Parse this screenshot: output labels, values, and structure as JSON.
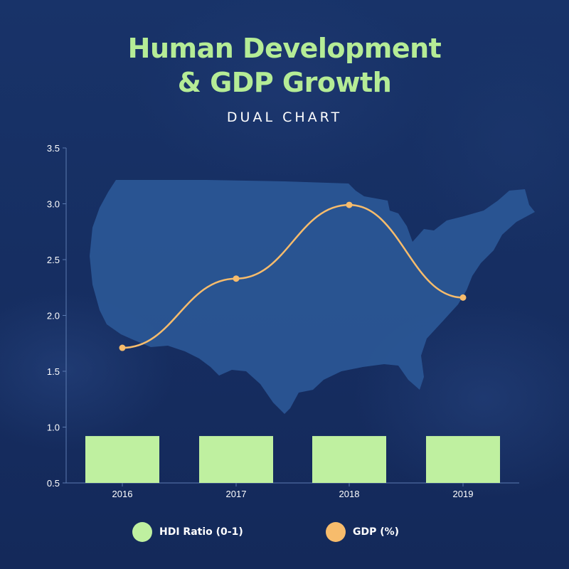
{
  "header": {
    "title_line1": "Human Development",
    "title_line2": "& GDP Growth",
    "subtitle": "DUAL CHART"
  },
  "colors": {
    "bar": "#bff0a0",
    "line": "#f7bc6c",
    "background": "#173064",
    "map": "#2d5a9a"
  },
  "legend": {
    "items": [
      {
        "label": "HDI Ratio (0-1)",
        "color": "#bff0a0"
      },
      {
        "label": "GDP (%)",
        "color": "#f7bc6c"
      }
    ]
  },
  "chart_data": {
    "type": "bar",
    "categories": [
      "2016",
      "2017",
      "2018",
      "2019"
    ],
    "series": [
      {
        "name": "HDI Ratio (0-1)",
        "type": "bar",
        "values": [
          0.92,
          0.92,
          0.92,
          0.92
        ]
      },
      {
        "name": "GDP (%)",
        "type": "line",
        "values": [
          1.71,
          2.33,
          2.99,
          2.16
        ]
      }
    ],
    "y_ticks": [
      "0.5",
      "1.0",
      "1.5",
      "2.0",
      "2.5",
      "3.0",
      "3.5"
    ],
    "ylim": [
      0.5,
      3.5
    ],
    "xlabel": "",
    "ylabel": "",
    "grid": false,
    "legend_position": "bottom"
  }
}
